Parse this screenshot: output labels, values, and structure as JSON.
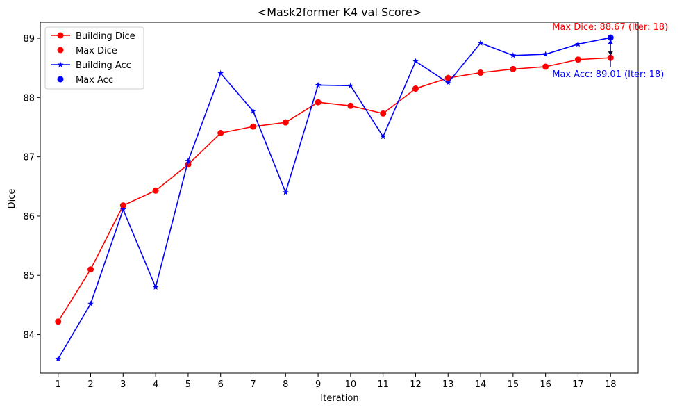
{
  "chart_data": {
    "type": "line",
    "title": "<Mask2former K4 val Score>",
    "xlabel": "Iteration",
    "ylabel": "Dice",
    "x": [
      1,
      2,
      3,
      4,
      5,
      6,
      7,
      8,
      9,
      10,
      11,
      12,
      13,
      14,
      15,
      16,
      17,
      18
    ],
    "x_ticks": [
      "1",
      "2",
      "3",
      "4",
      "5",
      "6",
      "7",
      "8",
      "9",
      "10",
      "11",
      "12",
      "13",
      "14",
      "15",
      "16",
      "17",
      "18"
    ],
    "y_ticks": [
      "84",
      "85",
      "86",
      "87",
      "88",
      "89"
    ],
    "xlim": [
      0.45,
      18.85
    ],
    "ylim": [
      83.35,
      89.27
    ],
    "grid": false,
    "legend_position": "top-left",
    "series": [
      {
        "name": "Building Dice",
        "color": "#ff0000",
        "marker": "circle",
        "values": [
          84.22,
          85.1,
          86.18,
          86.43,
          86.87,
          87.4,
          87.51,
          87.58,
          87.92,
          87.86,
          87.73,
          88.15,
          88.33,
          88.42,
          88.48,
          88.52,
          88.64,
          88.67
        ]
      },
      {
        "name": "Building Acc",
        "color": "#0000ff",
        "marker": "star",
        "values": [
          83.59,
          84.52,
          86.11,
          84.8,
          86.93,
          88.41,
          87.77,
          86.4,
          88.21,
          88.2,
          87.34,
          88.61,
          88.25,
          88.92,
          88.71,
          88.73,
          88.9,
          89.01
        ]
      }
    ],
    "highlights": [
      {
        "name": "Max Dice",
        "color": "#ff0000",
        "x": 18,
        "y": 88.67,
        "label": "Max Dice: 88.67 (Iter: 18)"
      },
      {
        "name": "Max Acc",
        "color": "#0000ff",
        "x": 18,
        "y": 89.01,
        "label": "Max Acc: 89.01 (Iter: 18)"
      }
    ],
    "legend": [
      "Building Dice",
      "Max Dice",
      "Building Acc",
      "Max Acc"
    ]
  }
}
